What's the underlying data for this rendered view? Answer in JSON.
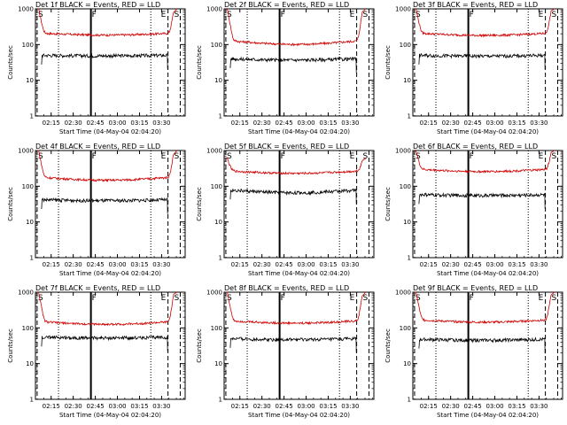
{
  "colors": {
    "events": "#000000",
    "lld": "#d00000",
    "axes": "#000000",
    "background": "#ffffff"
  },
  "chart_data": [
    {
      "type": "line",
      "title": "Det 1f BLACK = Events, RED = LLD",
      "xlabel": "Start Time (04-May-04 02:04:20)",
      "ylabel": "Counts/sec",
      "y_scale": "log",
      "ylim": [
        1,
        1000
      ],
      "x_ticks": [
        "02:15",
        "02:30",
        "02:45",
        "03:00",
        "03:15",
        "03:30"
      ],
      "y_ticks": [
        "1",
        "10",
        "100",
        "1000"
      ],
      "series": [
        {
          "name": "LLD",
          "color": "#d00000",
          "level": 210,
          "edge_high": 1000,
          "dip": 0.12
        },
        {
          "name": "Events",
          "color": "#000000",
          "level": 50,
          "dip": 0.03
        }
      ],
      "markers": {
        "S_left": "S",
        "F": "F",
        "E": "E",
        "S_right": "S"
      }
    },
    {
      "type": "line",
      "title": "Det 2f BLACK = Events, RED = LLD",
      "xlabel": "Start Time (04-May-04 02:04:20)",
      "ylabel": "Counts/sec",
      "y_scale": "log",
      "ylim": [
        1,
        1000
      ],
      "x_ticks": [
        "02:15",
        "02:30",
        "02:45",
        "03:00",
        "03:15",
        "03:30"
      ],
      "y_ticks": [
        "1",
        "10",
        "100",
        "1000"
      ],
      "series": [
        {
          "name": "LLD",
          "color": "#d00000",
          "level": 130,
          "edge_high": 1000,
          "dip": 0.22
        },
        {
          "name": "Events",
          "color": "#000000",
          "level": 40,
          "dip": 0.08
        }
      ],
      "markers": {
        "S_left": "S",
        "F": "F",
        "E": "E",
        "S_right": "S"
      }
    },
    {
      "type": "line",
      "title": "Det 3f BLACK = Events, RED = LLD",
      "xlabel": "Start Time (04-May-04 02:04:20)",
      "ylabel": "Counts/sec",
      "y_scale": "log",
      "ylim": [
        1,
        1000
      ],
      "x_ticks": [
        "02:15",
        "02:30",
        "02:45",
        "03:00",
        "03:15",
        "03:30"
      ],
      "y_ticks": [
        "1",
        "10",
        "100",
        "1000"
      ],
      "series": [
        {
          "name": "LLD",
          "color": "#d00000",
          "level": 210,
          "edge_high": 1000,
          "dip": 0.14
        },
        {
          "name": "Events",
          "color": "#000000",
          "level": 50,
          "dip": 0.05
        }
      ],
      "markers": {
        "S_left": "S",
        "F": "F",
        "E": "E",
        "S_right": "S"
      }
    },
    {
      "type": "line",
      "title": "Det 4f BLACK = Events, RED = LLD",
      "xlabel": "Start Time (04-May-04 02:04:20)",
      "ylabel": "Counts/sec",
      "y_scale": "log",
      "ylim": [
        1,
        1000
      ],
      "x_ticks": [
        "02:15",
        "02:30",
        "02:45",
        "03:00",
        "03:15",
        "03:30"
      ],
      "y_ticks": [
        "1",
        "10",
        "100",
        "1000"
      ],
      "series": [
        {
          "name": "LLD",
          "color": "#d00000",
          "level": 180,
          "edge_high": 1000,
          "dip": 0.18
        },
        {
          "name": "Events",
          "color": "#000000",
          "level": 42,
          "dip": 0.06
        }
      ],
      "markers": {
        "S_left": "S",
        "F": "F",
        "E": "E",
        "S_right": "S"
      }
    },
    {
      "type": "line",
      "title": "Det 5f BLACK = Events, RED = LLD",
      "xlabel": "Start Time (04-May-04 02:04:20)",
      "ylabel": "Counts/sec",
      "y_scale": "log",
      "ylim": [
        1,
        1000
      ],
      "x_ticks": [
        "02:15",
        "02:30",
        "02:45",
        "03:00",
        "03:15",
        "03:30"
      ],
      "y_ticks": [
        "1",
        "10",
        "100",
        "1000"
      ],
      "series": [
        {
          "name": "LLD",
          "color": "#d00000",
          "level": 270,
          "edge_high": 600,
          "dip": 0.15
        },
        {
          "name": "Events",
          "color": "#000000",
          "level": 78,
          "dip": 0.16
        }
      ],
      "markers": {
        "S_left": "S",
        "F": "F",
        "E": "E",
        "S_right": "S"
      }
    },
    {
      "type": "line",
      "title": "Det 6f BLACK = Events, RED = LLD",
      "xlabel": "Start Time (04-May-04 02:04:20)",
      "ylabel": "Counts/sec",
      "y_scale": "log",
      "ylim": [
        1,
        1000
      ],
      "x_ticks": [
        "02:15",
        "02:30",
        "02:45",
        "03:00",
        "03:15",
        "03:30"
      ],
      "y_ticks": [
        "1",
        "10",
        "100",
        "1000"
      ],
      "series": [
        {
          "name": "LLD",
          "color": "#d00000",
          "level": 300,
          "edge_high": 1000,
          "dip": 0.14
        },
        {
          "name": "Events",
          "color": "#000000",
          "level": 58,
          "dip": 0.05
        }
      ],
      "markers": {
        "S_left": "S",
        "F": "F",
        "E": "E",
        "S_right": "S"
      }
    },
    {
      "type": "line",
      "title": "Det 7f BLACK = Events, RED = LLD",
      "xlabel": "Start Time (04-May-04 02:04:20)",
      "ylabel": "Counts/sec",
      "y_scale": "log",
      "ylim": [
        1,
        1000
      ],
      "x_ticks": [
        "02:15",
        "02:30",
        "02:45",
        "03:00",
        "03:15",
        "03:30"
      ],
      "y_ticks": [
        "1",
        "10",
        "100",
        "1000"
      ],
      "series": [
        {
          "name": "LLD",
          "color": "#d00000",
          "level": 150,
          "edge_high": 1000,
          "dip": 0.16
        },
        {
          "name": "Events",
          "color": "#000000",
          "level": 55,
          "dip": 0.05
        }
      ],
      "markers": {
        "S_left": "S",
        "F": "F",
        "E": "E",
        "S_right": "S"
      }
    },
    {
      "type": "line",
      "title": "Det 8f BLACK = Events, RED = LLD",
      "xlabel": "Start Time (04-May-04 02:04:20)",
      "ylabel": "Counts/sec",
      "y_scale": "log",
      "ylim": [
        1,
        1000
      ],
      "x_ticks": [
        "02:15",
        "02:30",
        "02:45",
        "03:00",
        "03:15",
        "03:30"
      ],
      "y_ticks": [
        "1",
        "10",
        "100",
        "1000"
      ],
      "series": [
        {
          "name": "LLD",
          "color": "#d00000",
          "level": 160,
          "edge_high": 1000,
          "dip": 0.15
        },
        {
          "name": "Events",
          "color": "#000000",
          "level": 50,
          "dip": 0.06
        }
      ],
      "markers": {
        "S_left": "S",
        "F": "F",
        "E": "E",
        "S_right": "S"
      }
    },
    {
      "type": "line",
      "title": "Det 9f BLACK = Events, RED = LLD",
      "xlabel": "Start Time (04-May-04 02:04:20)",
      "ylabel": "Counts/sec",
      "y_scale": "log",
      "ylim": [
        1,
        1000
      ],
      "x_ticks": [
        "02:15",
        "02:30",
        "02:45",
        "03:00",
        "03:15",
        "03:30"
      ],
      "y_ticks": [
        "1",
        "10",
        "100",
        "1000"
      ],
      "series": [
        {
          "name": "LLD",
          "color": "#d00000",
          "level": 170,
          "edge_high": 1000,
          "dip": 0.15
        },
        {
          "name": "Events",
          "color": "#000000",
          "level": 48,
          "dip": 0.06
        }
      ],
      "markers": {
        "S_left": "S",
        "F": "F",
        "E": "E",
        "S_right": "S"
      }
    }
  ]
}
